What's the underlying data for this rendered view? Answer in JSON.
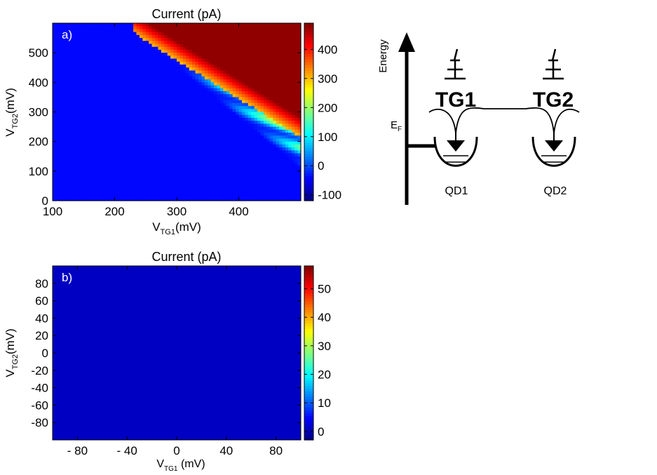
{
  "chart_data": [
    {
      "type": "heatmap",
      "panel_label": "a)",
      "title": "Current (pA)",
      "xlabel": {
        "main": "V",
        "sub": "TG1",
        "unit": "(mV)"
      },
      "ylabel": {
        "main": "V",
        "sub": "TG2",
        "unit": "(mV)"
      },
      "xlim": [
        100,
        500
      ],
      "ylim": [
        0,
        600
      ],
      "x_ticks": [
        100,
        200,
        300,
        400
      ],
      "y_ticks": [
        0,
        100,
        200,
        300,
        400,
        500
      ],
      "colorbar": {
        "min": -120,
        "max": 490,
        "ticks": [
          -100,
          0,
          100,
          200,
          300,
          400
        ]
      },
      "colormap": "jet",
      "description_of_values": {
        "background_pA": -40,
        "onset_vtg1_mV": 250,
        "saturation_pA": 480
      }
    },
    {
      "type": "heatmap",
      "panel_label": "b)",
      "title": "Current (pA)",
      "xlabel": {
        "main": "V",
        "sub": "TG1",
        "unit": " (mV)"
      },
      "ylabel": {
        "main": "V",
        "sub": "TG2",
        "unit": "(mV)"
      },
      "xlim": [
        -100,
        100
      ],
      "ylim": [
        -100,
        100
      ],
      "x_ticks": [
        -80,
        -40,
        0,
        40,
        80
      ],
      "x_tick_labels": [
        "- 80",
        "- 40",
        "0",
        "40",
        "80"
      ],
      "y_ticks": [
        -80,
        -60,
        -40,
        -20,
        0,
        20,
        40,
        60,
        80
      ],
      "colorbar": {
        "min": -3,
        "max": 58,
        "ticks": [
          0,
          10,
          20,
          30,
          40,
          50
        ]
      },
      "colormap": "jet",
      "uniform_value_pA": 1
    }
  ],
  "schematic": {
    "energy_label": "Energy",
    "fermi_label": {
      "main": "E",
      "sub": "F"
    },
    "gate1_label": "TG1",
    "gate2_label": "TG2",
    "dot1_label": "QD1",
    "dot2_label": "QD2"
  }
}
